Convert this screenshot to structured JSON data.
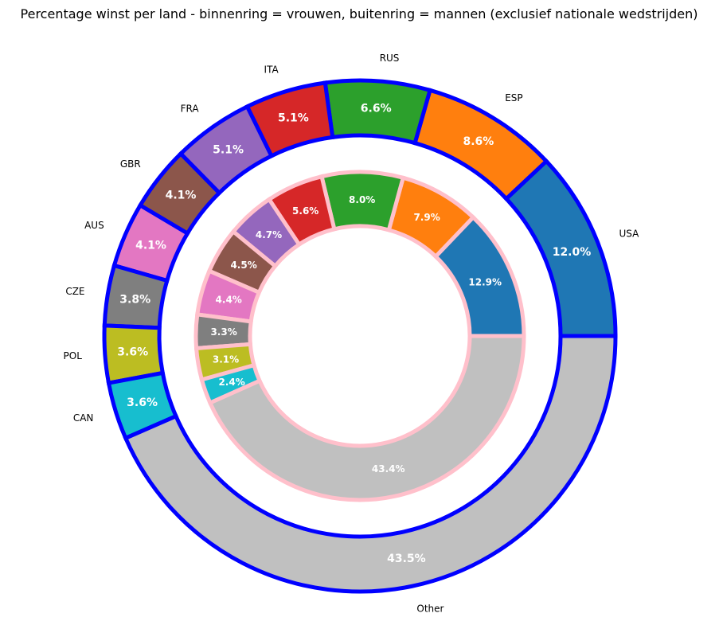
{
  "chart_data": {
    "type": "pie",
    "subtype": "nested-donut",
    "title": "Percentage winst per land - binnenring = vrouwen, buitenring = mannen (exclusief nationale wedstrijden)",
    "categories": [
      "USA",
      "ESP",
      "RUS",
      "ITA",
      "FRA",
      "GBR",
      "AUS",
      "CZE",
      "POL",
      "CAN",
      "Other"
    ],
    "colors": [
      "#1f77b4",
      "#ff7f0e",
      "#2ca02c",
      "#d62728",
      "#9467bd",
      "#8c564b",
      "#e377c2",
      "#7f7f7f",
      "#bcbd22",
      "#17becf",
      "#c0c0c0"
    ],
    "series": [
      {
        "ring": "outer",
        "edge_color": "#0000ff",
        "values": [
          12.0,
          8.6,
          6.6,
          5.1,
          5.1,
          4.1,
          4.1,
          3.8,
          3.6,
          3.6,
          43.5
        ],
        "value_labels": [
          "12.0%",
          "8.6%",
          "6.6%",
          "5.1%",
          "5.1%",
          "4.1%",
          "4.1%",
          "3.8%",
          "3.6%",
          "3.6%",
          "43.5%"
        ]
      },
      {
        "ring": "inner",
        "edge_color": "#ffc0cb",
        "values": [
          12.9,
          7.9,
          8.0,
          5.6,
          4.7,
          4.5,
          4.4,
          3.3,
          3.1,
          2.4,
          43.4
        ],
        "value_labels": [
          "12.9%",
          "7.9%",
          "8.0%",
          "5.6%",
          "4.7%",
          "4.5%",
          "4.4%",
          "3.3%",
          "3.1%",
          "2.4%",
          "43.4%"
        ]
      }
    ],
    "start_angle_deg": 0,
    "direction": "counterclockwise"
  }
}
